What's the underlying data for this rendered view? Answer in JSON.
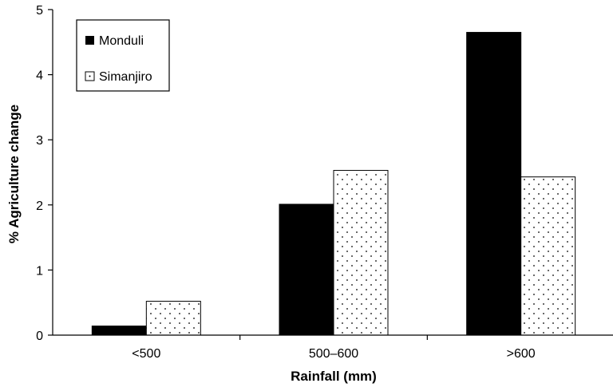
{
  "chart_data": {
    "type": "bar",
    "title": "",
    "xlabel": "Rainfall (mm)",
    "ylabel": "% Agriculture change",
    "categories": [
      "<500",
      "500–600",
      ">600"
    ],
    "ylim": [
      0,
      5
    ],
    "yticks": [
      0,
      1,
      2,
      3,
      4,
      5
    ],
    "grid": false,
    "legend_position": "top-left",
    "series": [
      {
        "name": "Monduli",
        "values": [
          0.14,
          2.01,
          4.65
        ],
        "fill": "solid",
        "color": "#000000"
      },
      {
        "name": "Simanjiro",
        "values": [
          0.52,
          2.53,
          2.43
        ],
        "fill": "dotted",
        "color": "#ffffff"
      }
    ]
  }
}
